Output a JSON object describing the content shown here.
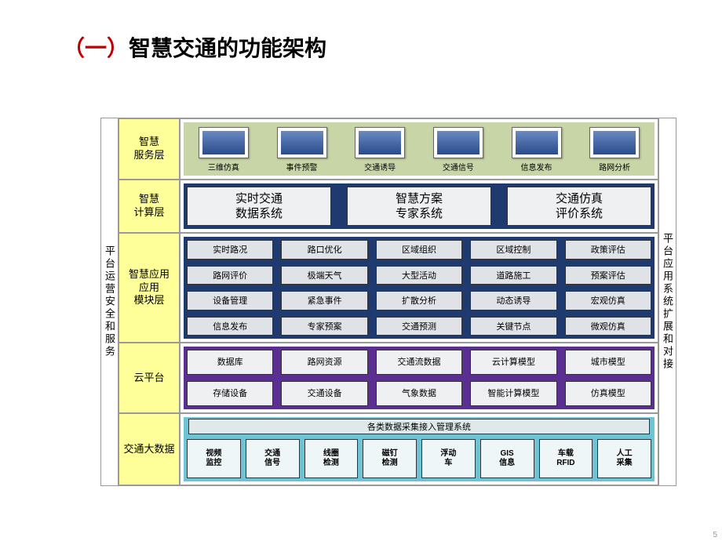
{
  "title": {
    "prefix": "（一）",
    "main": "智慧交通的功能架构"
  },
  "colors": {
    "label_bg": "#ffff99",
    "row1_bg": "#c7d5a7",
    "row2_bg": "#1f3a6e",
    "row3_bg": "#1f3a6e",
    "row4_bg": "#5b2e91",
    "row5_bg": "#6ec3d4",
    "cell_bg": "#eef0f2",
    "title_red": "#c00000"
  },
  "left_strip": "平台运营安全和服务",
  "right_strip": "平台应用系统扩展和对接",
  "layers": {
    "service": {
      "label": "智慧\n服务层",
      "items": [
        "三维仿真",
        "事件预警",
        "交通诱导",
        "交通信号",
        "信息发布",
        "路网分析"
      ]
    },
    "compute": {
      "label": "智慧\n计算层",
      "items": [
        "实时交通\n数据系统",
        "智慧方案\n专家系统",
        "交通仿真\n评价系统"
      ]
    },
    "modules": {
      "label": "智慧应用\n应用\n模块层",
      "grid": [
        [
          "实时路况",
          "路口优化",
          "区域组织",
          "区域控制",
          "政策评估"
        ],
        [
          "路网评价",
          "极端天气",
          "大型活动",
          "道路施工",
          "预案评估"
        ],
        [
          "设备管理",
          "紧急事件",
          "扩散分析",
          "动态诱导",
          "宏观仿真"
        ],
        [
          "信息发布",
          "专家预案",
          "交通预测",
          "关键节点",
          "微观仿真"
        ]
      ]
    },
    "cloud": {
      "label": "云平台",
      "grid": [
        [
          "数据库",
          "路网资源",
          "交通流数据",
          "云计算模型",
          "城市模型"
        ],
        [
          "存储设备",
          "交通设备",
          "气象数据",
          "智能计算模型",
          "仿真模型"
        ]
      ]
    },
    "bigdata": {
      "label": "交通大数据",
      "header": "各类数据采集接入管理系统",
      "items": [
        "视频\n监控",
        "交通\n信号",
        "线圈\n检测",
        "磁钉\n检测",
        "浮动\n车",
        "GIS\n信息",
        "车载\nRFID",
        "人工\n采集"
      ]
    }
  },
  "page_number": "5"
}
